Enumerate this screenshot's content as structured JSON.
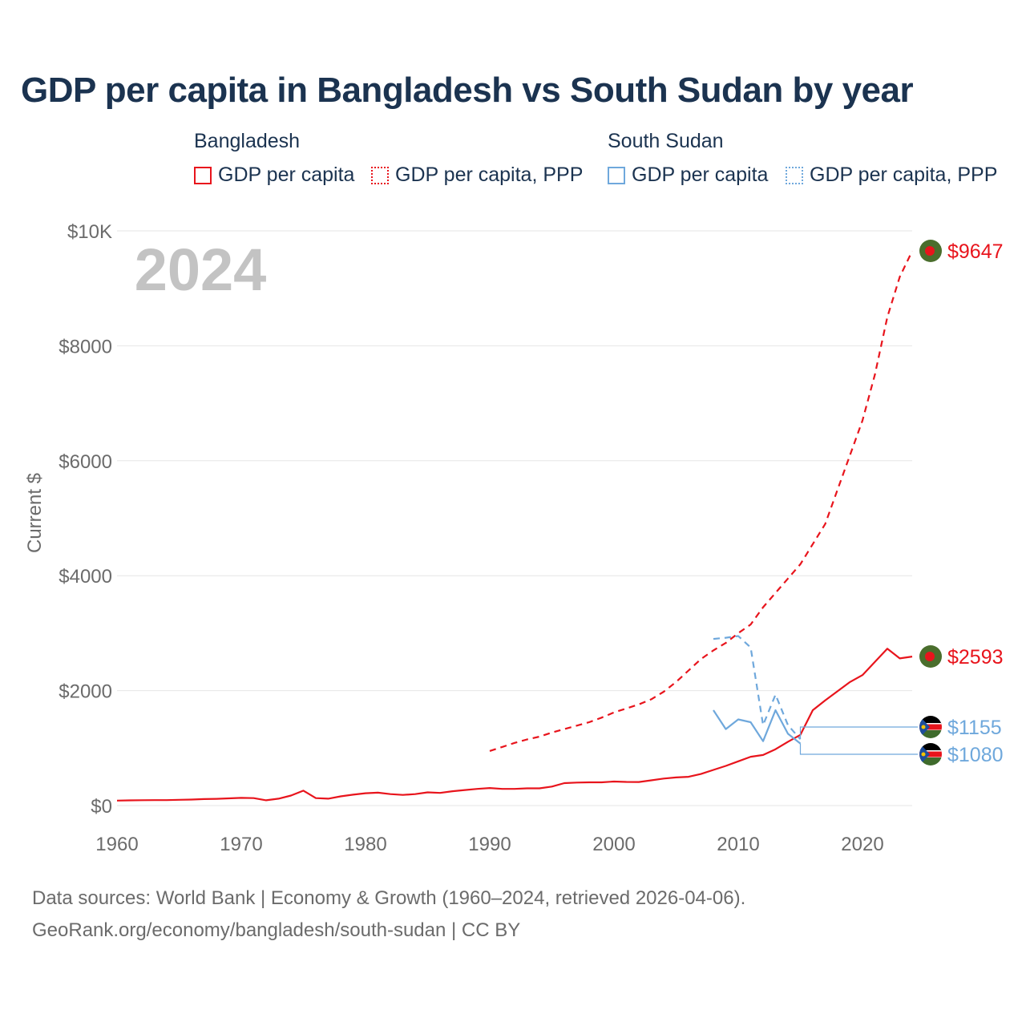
{
  "chart_data": {
    "type": "line",
    "title": "GDP per capita in Bangladesh vs South Sudan by year",
    "year_watermark": "2024",
    "ylabel": "Current $",
    "xlabel": "",
    "xlim": [
      1960,
      2024
    ],
    "ylim": [
      0,
      10000
    ],
    "x_ticks": [
      1960,
      1970,
      1980,
      1990,
      2000,
      2010,
      2020
    ],
    "x_tick_labels": [
      "1960",
      "1970",
      "1980",
      "1990",
      "2000",
      "2010",
      "2020"
    ],
    "y_ticks": [
      0,
      2000,
      4000,
      6000,
      8000,
      10000
    ],
    "y_tick_labels": [
      "$0",
      "$2000",
      "$4000",
      "$6000",
      "$8000",
      "$10K"
    ],
    "grid": true,
    "legend": {
      "placement": "top",
      "groups": [
        {
          "title": "Bangladesh",
          "color": "#e8141c",
          "items": [
            {
              "label": "GDP per capita",
              "style": "solid"
            },
            {
              "label": "GDP per capita, PPP",
              "style": "dotted"
            }
          ]
        },
        {
          "title": "South Sudan",
          "color": "#6fa8dc",
          "items": [
            {
              "label": "GDP per capita",
              "style": "solid"
            },
            {
              "label": "GDP per capita, PPP",
              "style": "dotted"
            }
          ]
        }
      ]
    },
    "series": [
      {
        "name": "Bangladesh GDP per capita",
        "color": "#e8141c",
        "dash": "solid",
        "x": [
          1960,
          1961,
          1962,
          1963,
          1964,
          1965,
          1966,
          1967,
          1968,
          1969,
          1970,
          1971,
          1972,
          1973,
          1974,
          1975,
          1976,
          1977,
          1978,
          1979,
          1980,
          1981,
          1982,
          1983,
          1984,
          1985,
          1986,
          1987,
          1988,
          1989,
          1990,
          1991,
          1992,
          1993,
          1994,
          1995,
          1996,
          1997,
          1998,
          1999,
          2000,
          2001,
          2002,
          2003,
          2004,
          2005,
          2006,
          2007,
          2008,
          2009,
          2010,
          2011,
          2012,
          2013,
          2014,
          2015,
          2016,
          2017,
          2018,
          2019,
          2020,
          2021,
          2022,
          2023,
          2024
        ],
        "values": [
          86,
          91,
          94,
          95,
          95,
          100,
          105,
          113,
          117,
          126,
          134,
          130,
          92,
          120,
          174,
          260,
          130,
          120,
          160,
          190,
          215,
          225,
          200,
          185,
          200,
          230,
          220,
          250,
          270,
          290,
          306,
          290,
          290,
          300,
          300,
          330,
          390,
          400,
          405,
          405,
          418,
          412,
          410,
          440,
          470,
          490,
          500,
          550,
          620,
          690,
          770,
          850,
          880,
          980,
          1110,
          1230,
          1660,
          1830,
          1990,
          2150,
          2270,
          2500,
          2730,
          2560,
          2593
        ],
        "end_label": "$2593"
      },
      {
        "name": "Bangladesh GDP per capita, PPP",
        "color": "#e8141c",
        "dash": "dashed",
        "x": [
          1990,
          1991,
          1992,
          1993,
          1994,
          1995,
          1996,
          1997,
          1998,
          1999,
          2000,
          2001,
          2002,
          2003,
          2004,
          2005,
          2006,
          2007,
          2008,
          2009,
          2010,
          2011,
          2012,
          2013,
          2014,
          2015,
          2016,
          2017,
          2018,
          2019,
          2020,
          2021,
          2022,
          2023,
          2024
        ],
        "values": [
          950,
          1020,
          1090,
          1150,
          1200,
          1270,
          1330,
          1390,
          1450,
          1530,
          1620,
          1690,
          1760,
          1850,
          1980,
          2150,
          2350,
          2550,
          2700,
          2830,
          3000,
          3150,
          3450,
          3700,
          3950,
          4200,
          4550,
          4900,
          5500,
          6100,
          6700,
          7500,
          8500,
          9200,
          9647
        ],
        "end_label": "$9647"
      },
      {
        "name": "South Sudan GDP per capita",
        "color": "#6fa8dc",
        "dash": "solid",
        "x": [
          2008,
          2009,
          2010,
          2011,
          2012,
          2013,
          2014,
          2015
        ],
        "values": [
          1660,
          1330,
          1500,
          1450,
          1120,
          1660,
          1250,
          1080
        ],
        "end_label": "$1080"
      },
      {
        "name": "South Sudan GDP per capita, PPP",
        "color": "#6fa8dc",
        "dash": "dashed",
        "x": [
          2008,
          2009,
          2010,
          2011,
          2012,
          2013,
          2014,
          2015
        ],
        "values": [
          2900,
          2920,
          2950,
          2750,
          1400,
          1930,
          1400,
          1155
        ],
        "end_label": "$1155"
      }
    ]
  },
  "footer": {
    "line1": "Data sources: World Bank | Economy & Growth (1960–2024, retrieved 2026-04-06).",
    "line2": "GeoRank.org/economy/bangladesh/south-sudan | CC BY"
  },
  "flags": [
    {
      "country": "Bangladesh",
      "icon": "bangladesh-flag-icon",
      "green": "#4a6e2d",
      "red": "#e8141c"
    },
    {
      "country": "South Sudan",
      "icon": "south-sudan-flag-icon",
      "blue": "#1f4e9c",
      "red": "#e8141c",
      "green": "#3f6b2c",
      "black": "#000000"
    }
  ]
}
